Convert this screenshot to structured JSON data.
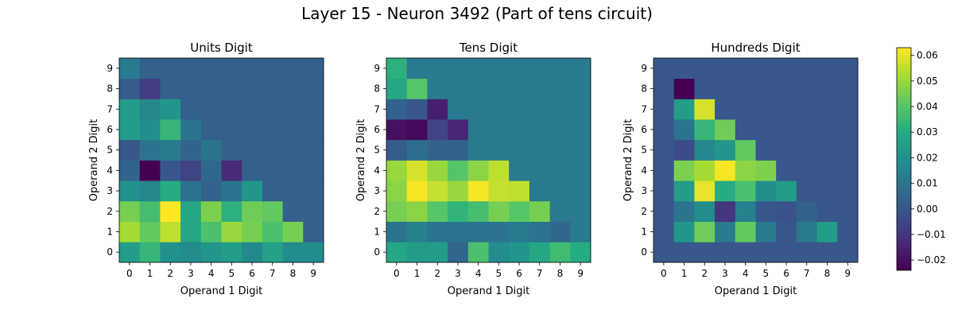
{
  "figure": {
    "title": "Layer 15 - Neuron 3492 (Part of tens circuit)"
  },
  "chart_data": [
    {
      "type": "heatmap",
      "title": "Units Digit",
      "xlabel": "Operand 1 Digit",
      "ylabel": "Operand 2 Digit",
      "x": [
        0,
        1,
        2,
        3,
        4,
        5,
        6,
        7,
        8,
        9
      ],
      "y": [
        0,
        1,
        2,
        3,
        4,
        5,
        6,
        7,
        8,
        9
      ],
      "rows_note_y_index": "values[y][x]",
      "values": [
        [
          0.024,
          0.034,
          0.02,
          0.018,
          0.022,
          0.024,
          0.017,
          0.026,
          0.018,
          0.018
        ],
        [
          0.052,
          0.042,
          0.055,
          0.028,
          0.038,
          0.05,
          0.045,
          0.038,
          0.045,
          0.003
        ],
        [
          0.045,
          0.037,
          0.063,
          0.028,
          0.046,
          0.032,
          0.044,
          0.042,
          0.003,
          0.003
        ],
        [
          0.02,
          0.016,
          0.03,
          0.01,
          0.004,
          0.01,
          0.022,
          0.003,
          0.003,
          0.003
        ],
        [
          0.004,
          -0.024,
          0.0,
          -0.006,
          0.006,
          -0.013,
          0.003,
          0.003,
          0.003,
          0.003
        ],
        [
          0.0,
          0.01,
          0.012,
          0.004,
          0.01,
          0.003,
          0.003,
          0.003,
          0.003,
          0.003
        ],
        [
          0.024,
          0.018,
          0.034,
          0.01,
          0.003,
          0.003,
          0.003,
          0.003,
          0.003,
          0.003
        ],
        [
          0.024,
          0.016,
          0.022,
          0.003,
          0.003,
          0.003,
          0.003,
          0.003,
          0.003,
          0.003
        ],
        [
          0.002,
          -0.008,
          0.003,
          0.003,
          0.003,
          0.003,
          0.003,
          0.003,
          0.003,
          0.003
        ],
        [
          0.012,
          0.003,
          0.003,
          0.003,
          0.003,
          0.003,
          0.003,
          0.003,
          0.003,
          0.003
        ]
      ]
    },
    {
      "type": "heatmap",
      "title": "Tens Digit",
      "xlabel": "Operand 1 Digit",
      "ylabel": "Operand 2 Digit",
      "x": [
        0,
        1,
        2,
        3,
        4,
        5,
        6,
        7,
        8,
        9
      ],
      "y": [
        0,
        1,
        2,
        3,
        4,
        5,
        6,
        7,
        8,
        9
      ],
      "values": [
        [
          0.028,
          0.024,
          0.024,
          0.005,
          0.038,
          0.018,
          0.022,
          0.028,
          0.036,
          0.03
        ],
        [
          0.01,
          0.014,
          0.01,
          0.01,
          0.01,
          0.01,
          0.012,
          0.01,
          0.006,
          0.012
        ],
        [
          0.045,
          0.048,
          0.04,
          0.033,
          0.037,
          0.045,
          0.04,
          0.045,
          0.012,
          0.012
        ],
        [
          0.048,
          0.062,
          0.056,
          0.05,
          0.062,
          0.056,
          0.055,
          0.012,
          0.012,
          0.012
        ],
        [
          0.05,
          0.058,
          0.05,
          0.04,
          0.048,
          0.055,
          0.012,
          0.012,
          0.012,
          0.012
        ],
        [
          0.002,
          0.008,
          0.004,
          0.004,
          0.012,
          0.012,
          0.012,
          0.012,
          0.012,
          0.012
        ],
        [
          -0.02,
          -0.022,
          -0.006,
          -0.014,
          0.012,
          0.012,
          0.012,
          0.012,
          0.012,
          0.012
        ],
        [
          0.004,
          0.0,
          -0.016,
          0.012,
          0.012,
          0.012,
          0.012,
          0.012,
          0.012,
          0.012
        ],
        [
          0.028,
          0.04,
          0.012,
          0.012,
          0.012,
          0.012,
          0.012,
          0.012,
          0.012,
          0.012
        ],
        [
          0.032,
          0.012,
          0.012,
          0.012,
          0.012,
          0.012,
          0.012,
          0.012,
          0.012,
          0.012
        ]
      ]
    },
    {
      "type": "heatmap",
      "title": "Hundreds Digit",
      "xlabel": "Operand 1 Digit",
      "ylabel": "Operand 2 Digit",
      "x": [
        0,
        1,
        2,
        3,
        4,
        5,
        6,
        7,
        8,
        9
      ],
      "y": [
        0,
        1,
        2,
        3,
        4,
        5,
        6,
        7,
        8,
        9
      ],
      "values": [
        [
          0.0,
          0.0,
          0.0,
          0.0,
          0.0,
          0.0,
          0.0,
          0.0,
          0.0,
          0.0
        ],
        [
          0.0,
          0.022,
          0.044,
          0.012,
          0.042,
          0.012,
          0.0,
          0.012,
          0.024,
          0.0
        ],
        [
          0.0,
          0.01,
          0.018,
          -0.01,
          0.014,
          0.0,
          -0.002,
          0.004,
          0.0,
          0.0
        ],
        [
          0.0,
          0.024,
          0.06,
          0.03,
          0.038,
          0.018,
          0.024,
          0.0,
          0.0,
          0.0
        ],
        [
          0.0,
          0.046,
          0.052,
          0.062,
          0.048,
          0.046,
          0.0,
          0.0,
          0.0,
          0.0
        ],
        [
          0.0,
          -0.004,
          0.016,
          0.022,
          0.042,
          0.0,
          0.0,
          0.0,
          0.0,
          0.0
        ],
        [
          0.0,
          0.01,
          0.034,
          0.044,
          0.0,
          0.0,
          0.0,
          0.0,
          0.0,
          0.0
        ],
        [
          0.0,
          0.024,
          0.058,
          0.0,
          0.0,
          0.0,
          0.0,
          0.0,
          0.0,
          0.0
        ],
        [
          0.0,
          -0.024,
          0.0,
          0.0,
          0.0,
          0.0,
          0.0,
          0.0,
          0.0,
          0.0
        ],
        [
          0.0,
          0.0,
          0.0,
          0.0,
          0.0,
          0.0,
          0.0,
          0.0,
          0.0,
          0.0
        ]
      ]
    }
  ],
  "colorbar": {
    "colormap": "viridis",
    "range": [
      -0.024,
      0.063
    ],
    "ticks": [
      -0.02,
      -0.01,
      0.0,
      0.01,
      0.02,
      0.03,
      0.04,
      0.05,
      0.06
    ],
    "tick_labels": [
      "−0.02",
      "−0.01",
      "0.00",
      "0.01",
      "0.02",
      "0.03",
      "0.04",
      "0.05",
      "0.06"
    ]
  }
}
